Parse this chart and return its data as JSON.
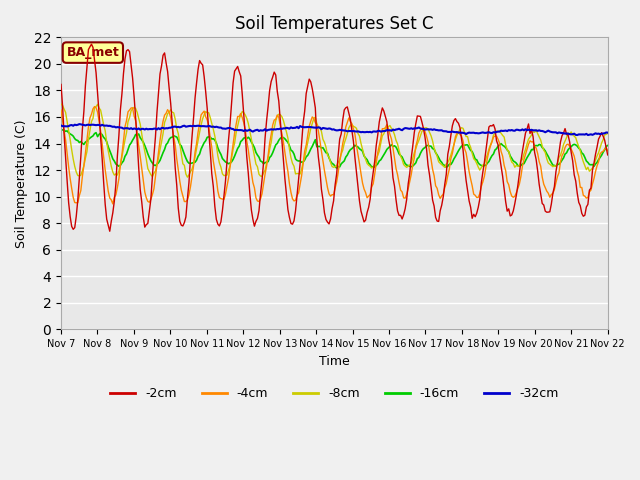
{
  "title": "Soil Temperatures Set C",
  "xlabel": "Time",
  "ylabel": "Soil Temperature (C)",
  "ylim": [
    0,
    22
  ],
  "yticks": [
    0,
    2,
    4,
    6,
    8,
    10,
    12,
    14,
    16,
    18,
    20,
    22
  ],
  "colors": {
    "-2cm": "#cc0000",
    "-4cm": "#ff8800",
    "-8cm": "#cccc00",
    "-16cm": "#00cc00",
    "-32cm": "#0000cc"
  },
  "legend_label": "BA_met",
  "legend_bg": "#ffff99",
  "legend_edge": "#880000",
  "bg_color": "#e8e8e8",
  "plot_bg": "#e8e8e8",
  "n_days": 15,
  "start_day": 7,
  "end_day": 22,
  "xtick_labels": [
    "Nov 7",
    "Nov 8",
    "Nov 9",
    "Nov 10",
    "Nov 11",
    "Nov 12",
    "Nov 13",
    "Nov 14",
    "Nov 15",
    "Nov 16",
    "Nov 17",
    "Nov 18",
    "Nov 19",
    "Nov 20",
    "Nov 21",
    "Nov 22"
  ]
}
